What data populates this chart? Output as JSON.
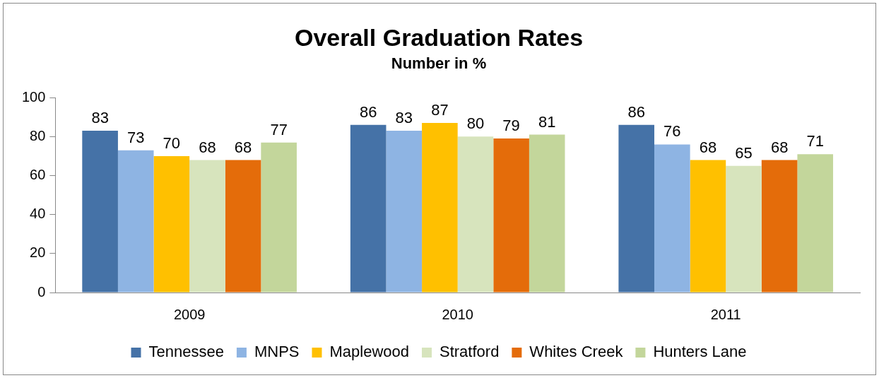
{
  "chart_data": {
    "type": "bar",
    "title": "Overall Graduation Rates",
    "subtitle": "Number in %",
    "categories": [
      "2009",
      "2010",
      "2011"
    ],
    "series": [
      {
        "name": "Tennessee",
        "color": "#4572a7",
        "values": [
          83,
          86,
          86
        ]
      },
      {
        "name": "MNPS",
        "color": "#8eb4e3",
        "values": [
          73,
          83,
          76
        ]
      },
      {
        "name": "Maplewood",
        "color": "#ffc000",
        "values": [
          70,
          87,
          68
        ]
      },
      {
        "name": "Stratford",
        "color": "#d7e4bd",
        "values": [
          68,
          80,
          65
        ]
      },
      {
        "name": "Whites Creek",
        "color": "#e46c0a",
        "values": [
          68,
          79,
          68
        ]
      },
      {
        "name": "Hunters Lane",
        "color": "#c3d69b",
        "values": [
          77,
          81,
          71
        ]
      }
    ],
    "ylim": [
      0,
      100
    ],
    "yticks": [
      0,
      20,
      40,
      60,
      80,
      100
    ],
    "grid": false,
    "legend": "bottom",
    "data_labels": true
  }
}
